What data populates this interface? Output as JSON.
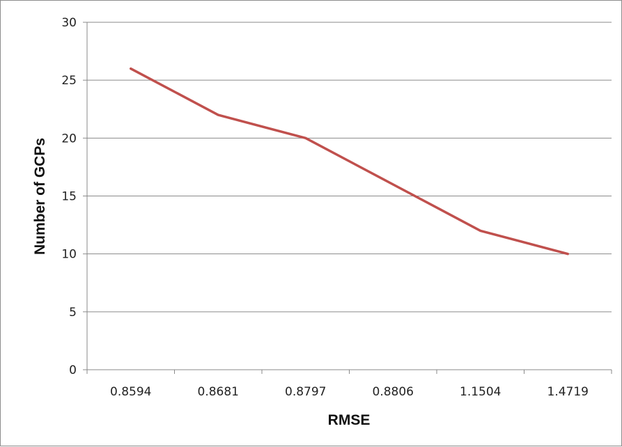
{
  "chart_data": {
    "type": "line",
    "title": "",
    "xlabel": "RMSE",
    "ylabel": "Number of GCPs",
    "categories": [
      "0.8594",
      "0.8681",
      "0.8797",
      "0.8806",
      "1.1504",
      "1.4719"
    ],
    "series": [
      {
        "values": [
          26,
          22,
          20,
          16,
          12,
          10
        ],
        "color": "#c0504d"
      }
    ],
    "ylim": [
      0,
      30
    ],
    "yticks": [
      0,
      5,
      10,
      15,
      20,
      25,
      30
    ],
    "grid": true,
    "legend": "none"
  }
}
